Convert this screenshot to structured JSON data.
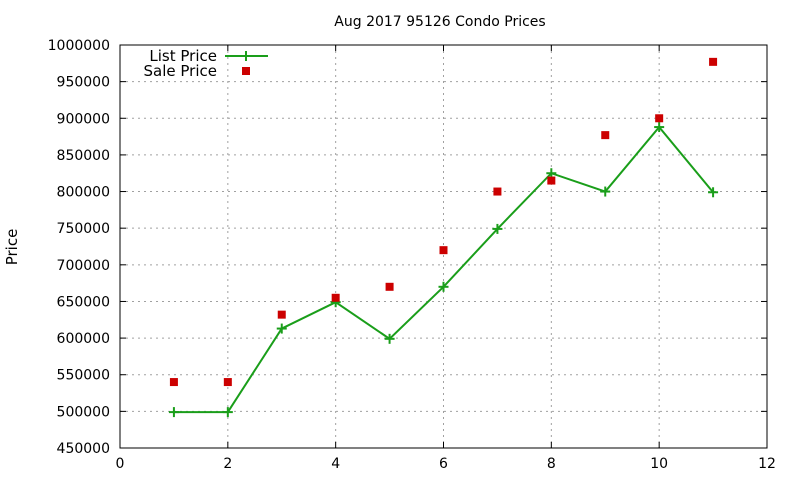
{
  "chart_data": {
    "type": "scatter",
    "title": "Aug 2017 95126 Condo Prices",
    "xlabel": "",
    "ylabel": "Price",
    "xlim": [
      0,
      12
    ],
    "ylim": [
      450000,
      1000000
    ],
    "x_ticks": [
      0,
      2,
      4,
      6,
      8,
      10,
      12
    ],
    "y_ticks": [
      450000,
      500000,
      550000,
      600000,
      650000,
      700000,
      750000,
      800000,
      850000,
      900000,
      950000,
      1000000
    ],
    "x_tick_labels": [
      "0",
      "2",
      "4",
      "6",
      "8",
      "10",
      "12"
    ],
    "y_tick_labels": [
      "450000",
      "500000",
      "550000",
      "600000",
      "650000",
      "700000",
      "750000",
      "800000",
      "850000",
      "900000",
      "950000",
      "1000000"
    ],
    "grid": true,
    "legend_position": "top-left",
    "series": [
      {
        "name": "List Price",
        "style": "linespoints",
        "marker": "plus",
        "color": "#1a9e1a",
        "points": [
          [
            1,
            499000
          ],
          [
            2,
            499000
          ],
          [
            3,
            613000
          ],
          [
            4,
            649000
          ],
          [
            5,
            599000
          ],
          [
            6,
            670000
          ],
          [
            7,
            749000
          ],
          [
            8,
            825000
          ],
          [
            9,
            800000
          ],
          [
            10,
            888000
          ],
          [
            11,
            799000
          ]
        ]
      },
      {
        "name": "Sale Price",
        "style": "points",
        "marker": "square",
        "color": "#cc0000",
        "points": [
          [
            1,
            540000
          ],
          [
            2,
            540000
          ],
          [
            3,
            632000
          ],
          [
            4,
            655000
          ],
          [
            5,
            670000
          ],
          [
            6,
            720000
          ],
          [
            7,
            800000
          ],
          [
            8,
            815000
          ],
          [
            9,
            877000
          ],
          [
            10,
            900000
          ],
          [
            11,
            977000
          ]
        ]
      }
    ]
  }
}
